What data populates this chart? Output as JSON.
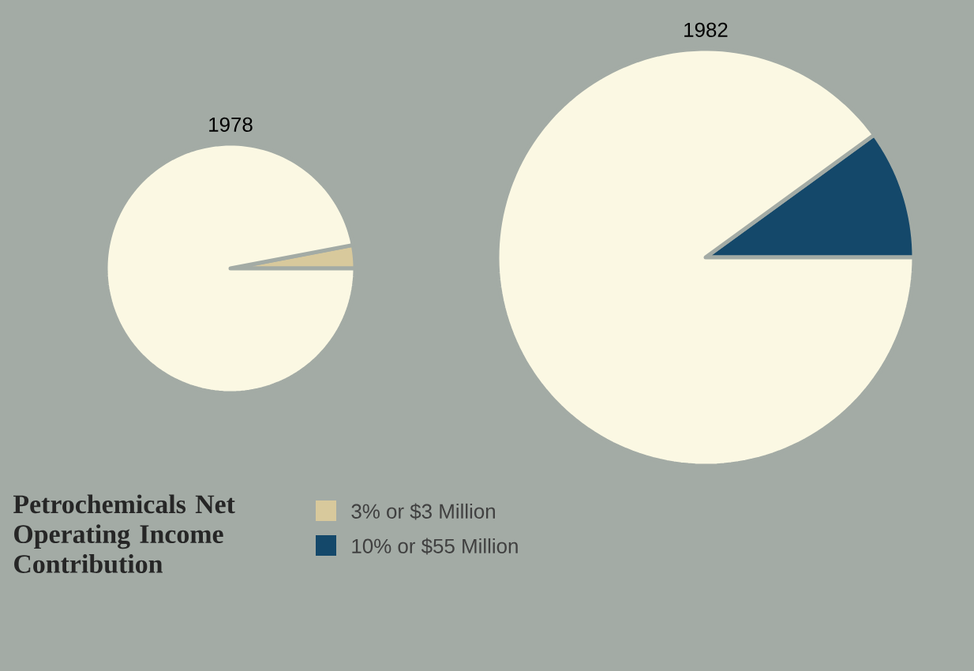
{
  "chart_data": [
    {
      "type": "pie",
      "title": "1978",
      "categories": [
        "3% or $3 Million",
        null
      ],
      "values": [
        3,
        97
      ],
      "colors": [
        "#d8c99c",
        "#fbf8e3"
      ],
      "legend": "bottom",
      "annotations": [
        "Petrochemicals Net Operating Income Contribution"
      ]
    },
    {
      "type": "pie",
      "title": "1982",
      "categories": [
        "10% or $55 Million",
        null
      ],
      "values": [
        10,
        90
      ],
      "colors": [
        "#14486a",
        "#fbf8e3"
      ],
      "legend": "bottom"
    }
  ]
}
